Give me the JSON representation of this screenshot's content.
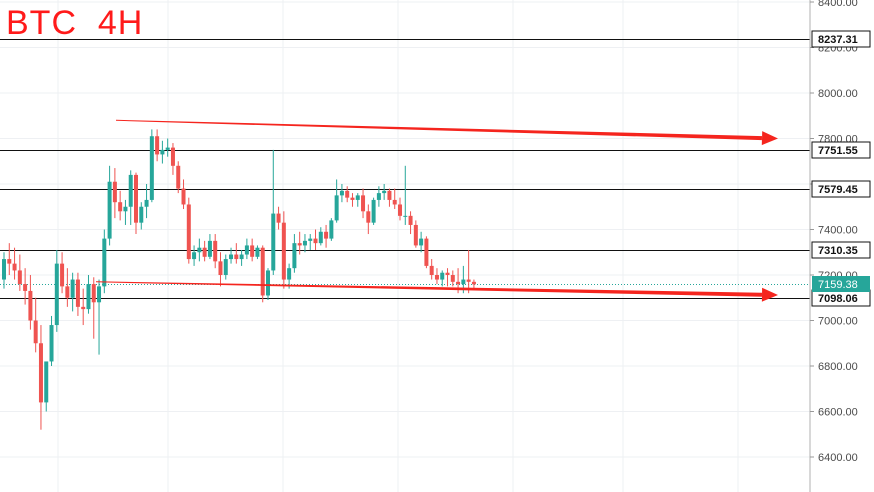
{
  "chart_data": {
    "type": "candlestick",
    "title": "BTC  4H",
    "y_ticks": [
      "6400.00",
      "6600.00",
      "6800.00",
      "7000.00",
      "7200.00",
      "7400.00",
      "7600.00",
      "7800.00",
      "8000.00",
      "8200.00",
      "8400.00"
    ],
    "ylim": [
      6330,
      8410
    ],
    "grid": true,
    "horizontal_levels": [
      {
        "label": "8237.31",
        "value": 8237.31
      },
      {
        "label": "7751.55",
        "value": 7751.55
      },
      {
        "label": "7579.45",
        "value": 7579.45
      },
      {
        "label": "7310.35",
        "value": 7310.35
      },
      {
        "label": "7098.06",
        "value": 7098.06
      }
    ],
    "last_price": {
      "label": "7159.38",
      "value": 7159.38
    },
    "trend_arrows": [
      {
        "from": 7880,
        "to": 7800
      },
      {
        "from": 7170,
        "to": 7112
      }
    ],
    "candles": [
      [
        7180,
        7300,
        7140,
        7270
      ],
      [
        7270,
        7340,
        7200,
        7250
      ],
      [
        7250,
        7320,
        7180,
        7220
      ],
      [
        7220,
        7290,
        7130,
        7160
      ],
      [
        7160,
        7230,
        7070,
        7130
      ],
      [
        7130,
        7200,
        6960,
        7000
      ],
      [
        7000,
        7100,
        6860,
        6900
      ],
      [
        6900,
        6980,
        6520,
        6640
      ],
      [
        6640,
        6800,
        6600,
        6820
      ],
      [
        6820,
        7020,
        6800,
        6980
      ],
      [
        6980,
        7310,
        6950,
        7250
      ],
      [
        7250,
        7300,
        7120,
        7150
      ],
      [
        7150,
        7230,
        7060,
        7100
      ],
      [
        7100,
        7210,
        7040,
        7180
      ],
      [
        7180,
        7210,
        7020,
        7060
      ],
      [
        7060,
        7140,
        6980,
        7050
      ],
      [
        7050,
        7200,
        7030,
        7160
      ],
      [
        7160,
        7190,
        6920,
        7080
      ],
      [
        7080,
        7180,
        6850,
        7150
      ],
      [
        7150,
        7400,
        7120,
        7360
      ],
      [
        7360,
        7680,
        7330,
        7610
      ],
      [
        7610,
        7670,
        7450,
        7520
      ],
      [
        7520,
        7570,
        7440,
        7480
      ],
      [
        7480,
        7530,
        7420,
        7500
      ],
      [
        7500,
        7660,
        7420,
        7640
      ],
      [
        7640,
        7650,
        7380,
        7430
      ],
      [
        7430,
        7520,
        7400,
        7500
      ],
      [
        7500,
        7600,
        7450,
        7530
      ],
      [
        7530,
        7840,
        7520,
        7810
      ],
      [
        7810,
        7840,
        7700,
        7730
      ],
      [
        7730,
        7790,
        7690,
        7750
      ],
      [
        7750,
        7800,
        7720,
        7760
      ],
      [
        7760,
        7780,
        7640,
        7680
      ],
      [
        7680,
        7700,
        7560,
        7580
      ],
      [
        7580,
        7620,
        7490,
        7510
      ],
      [
        7510,
        7540,
        7250,
        7270
      ],
      [
        7270,
        7330,
        7240,
        7300
      ],
      [
        7300,
        7360,
        7260,
        7320
      ],
      [
        7320,
        7350,
        7260,
        7280
      ],
      [
        7280,
        7380,
        7270,
        7350
      ],
      [
        7350,
        7380,
        7230,
        7260
      ],
      [
        7260,
        7300,
        7150,
        7200
      ],
      [
        7200,
        7290,
        7180,
        7270
      ],
      [
        7270,
        7320,
        7250,
        7290
      ],
      [
        7290,
        7340,
        7250,
        7270
      ],
      [
        7270,
        7310,
        7240,
        7290
      ],
      [
        7290,
        7360,
        7270,
        7330
      ],
      [
        7330,
        7360,
        7260,
        7280
      ],
      [
        7280,
        7330,
        7270,
        7320
      ],
      [
        7320,
        7330,
        7080,
        7110
      ],
      [
        7110,
        7230,
        7090,
        7220
      ],
      [
        7220,
        7750,
        7200,
        7470
      ],
      [
        7470,
        7500,
        7400,
        7430
      ],
      [
        7430,
        7480,
        7140,
        7180
      ],
      [
        7180,
        7250,
        7140,
        7230
      ],
      [
        7230,
        7380,
        7210,
        7340
      ],
      [
        7340,
        7390,
        7290,
        7330
      ],
      [
        7330,
        7380,
        7300,
        7350
      ],
      [
        7350,
        7380,
        7310,
        7360
      ],
      [
        7360,
        7400,
        7310,
        7340
      ],
      [
        7340,
        7410,
        7330,
        7390
      ],
      [
        7390,
        7420,
        7320,
        7360
      ],
      [
        7360,
        7450,
        7350,
        7440
      ],
      [
        7440,
        7620,
        7430,
        7550
      ],
      [
        7550,
        7600,
        7520,
        7570
      ],
      [
        7570,
        7590,
        7520,
        7540
      ],
      [
        7540,
        7560,
        7500,
        7530
      ],
      [
        7530,
        7560,
        7500,
        7550
      ],
      [
        7550,
        7580,
        7450,
        7480
      ],
      [
        7480,
        7510,
        7380,
        7430
      ],
      [
        7430,
        7540,
        7420,
        7530
      ],
      [
        7530,
        7590,
        7500,
        7560
      ],
      [
        7560,
        7600,
        7530,
        7570
      ],
      [
        7570,
        7580,
        7500,
        7530
      ],
      [
        7530,
        7580,
        7490,
        7510
      ],
      [
        7510,
        7540,
        7440,
        7460
      ],
      [
        7460,
        7680,
        7420,
        7460
      ],
      [
        7460,
        7480,
        7380,
        7420
      ],
      [
        7420,
        7440,
        7320,
        7330
      ],
      [
        7330,
        7390,
        7300,
        7360
      ],
      [
        7360,
        7370,
        7230,
        7240
      ],
      [
        7240,
        7270,
        7180,
        7200
      ],
      [
        7200,
        7230,
        7160,
        7180
      ],
      [
        7180,
        7220,
        7150,
        7210
      ],
      [
        7210,
        7230,
        7150,
        7200
      ],
      [
        7200,
        7220,
        7150,
        7170
      ],
      [
        7170,
        7230,
        7120,
        7160
      ],
      [
        7160,
        7240,
        7120,
        7180
      ],
      [
        7180,
        7310,
        7120,
        7170
      ],
      [
        7170,
        7180,
        7140,
        7159
      ]
    ]
  },
  "colors": {
    "up": "#26a69a",
    "down": "#ef5350",
    "arrow": "#f5251e",
    "title": "#ff1a1a",
    "last_price_bg": "#26a69a"
  }
}
